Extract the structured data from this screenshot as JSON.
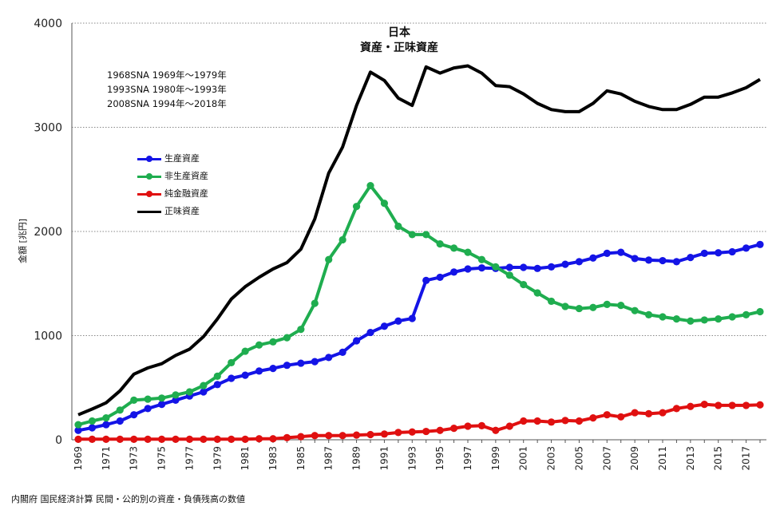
{
  "chart_data": {
    "type": "line",
    "title": "日本",
    "subtitle": "資産・正味資産",
    "notes": [
      "1968SNA 1969年～1979年",
      "1993SNA 1980年～1993年",
      "2008SNA 1994年～2018年"
    ],
    "ylabel": "金額 [兆円]",
    "xlabel": "",
    "ylim": [
      0,
      4000
    ],
    "yticks": [
      0,
      1000,
      2000,
      3000,
      4000
    ],
    "grid": true,
    "legend_position": "upper-left",
    "source": "内閣府 国民経済計算 民間・公的別の資産・負債残高の数値",
    "x": [
      1969,
      1970,
      1971,
      1972,
      1973,
      1974,
      1975,
      1976,
      1977,
      1978,
      1979,
      1980,
      1981,
      1982,
      1983,
      1984,
      1985,
      1986,
      1987,
      1988,
      1989,
      1990,
      1991,
      1992,
      1993,
      1994,
      1995,
      1996,
      1997,
      1998,
      1999,
      2000,
      2001,
      2002,
      2003,
      2004,
      2005,
      2006,
      2007,
      2008,
      2009,
      2010,
      2011,
      2012,
      2013,
      2014,
      2015,
      2016,
      2017,
      2018
    ],
    "xticks": [
      "1969",
      "1971",
      "1973",
      "1975",
      "1977",
      "1979",
      "1981",
      "1983",
      "1985",
      "1987",
      "1989",
      "1991",
      "1993",
      "1995",
      "1997",
      "1999",
      "2001",
      "2003",
      "2005",
      "2007",
      "2009",
      "2011",
      "2013",
      "2015",
      "2017"
    ],
    "series": [
      {
        "name": "生産資産",
        "color": "#1414e6",
        "markers": true,
        "values": [
          90,
          115,
          145,
          180,
          240,
          300,
          340,
          380,
          420,
          460,
          530,
          590,
          620,
          660,
          685,
          715,
          735,
          750,
          790,
          840,
          950,
          1030,
          1090,
          1140,
          1165,
          1530,
          1560,
          1610,
          1640,
          1650,
          1645,
          1655,
          1655,
          1645,
          1660,
          1685,
          1710,
          1745,
          1790,
          1800,
          1740,
          1725,
          1720,
          1710,
          1750,
          1790,
          1795,
          1805,
          1840,
          1875
        ]
      },
      {
        "name": "非生産資産",
        "color": "#1fad4f",
        "markers": true,
        "values": [
          145,
          180,
          210,
          285,
          380,
          390,
          400,
          430,
          460,
          520,
          610,
          740,
          850,
          910,
          940,
          980,
          1060,
          1310,
          1730,
          1920,
          2240,
          2440,
          2270,
          2050,
          1970,
          1970,
          1880,
          1840,
          1800,
          1730,
          1660,
          1580,
          1490,
          1410,
          1330,
          1280,
          1260,
          1270,
          1300,
          1290,
          1240,
          1200,
          1180,
          1160,
          1140,
          1150,
          1160,
          1180,
          1200,
          1230
        ]
      },
      {
        "name": "純金融資産",
        "color": "#e01010",
        "markers": true,
        "values": [
          5,
          5,
          5,
          5,
          5,
          5,
          5,
          5,
          5,
          5,
          5,
          5,
          5,
          10,
          10,
          20,
          30,
          40,
          40,
          40,
          45,
          50,
          55,
          70,
          75,
          80,
          90,
          110,
          130,
          135,
          90,
          130,
          180,
          180,
          170,
          185,
          180,
          210,
          240,
          220,
          260,
          250,
          260,
          300,
          320,
          340,
          330,
          330,
          330,
          335
        ]
      },
      {
        "name": "正味資産",
        "color": "#000000",
        "markers": false,
        "values": [
          240,
          295,
          355,
          470,
          630,
          690,
          730,
          810,
          870,
          990,
          1160,
          1350,
          1470,
          1560,
          1640,
          1700,
          1830,
          2120,
          2560,
          2810,
          3210,
          3530,
          3450,
          3280,
          3210,
          3580,
          3520,
          3570,
          3590,
          3520,
          3400,
          3390,
          3320,
          3230,
          3170,
          3150,
          3150,
          3230,
          3350,
          3320,
          3250,
          3200,
          3170,
          3170,
          3220,
          3290,
          3290,
          3330,
          3380,
          3460
        ]
      }
    ]
  }
}
